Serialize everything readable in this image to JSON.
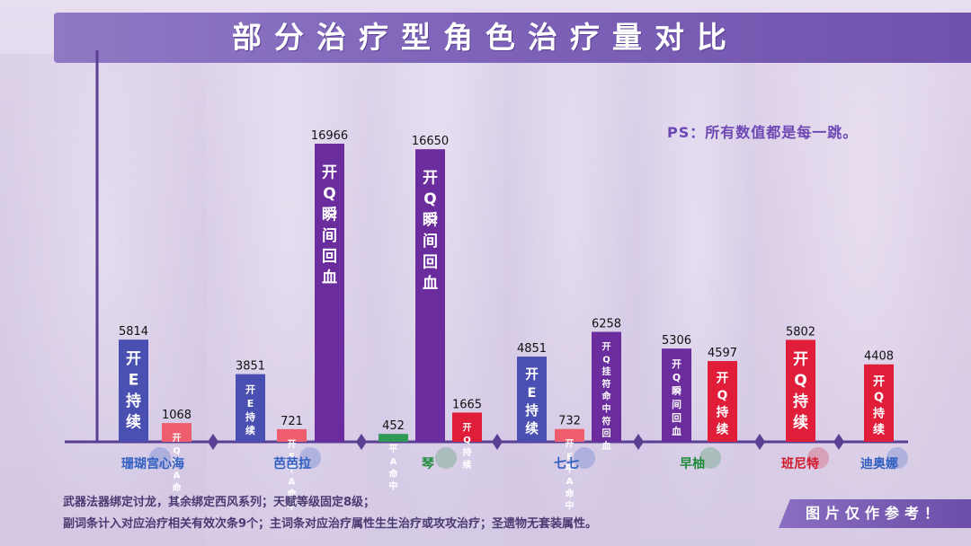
{
  "title": "部分治疗型角色治疗量对比",
  "ps_note": "PS：所有数值都是每一跳。",
  "footer": {
    "line1": "武器法器绑定讨龙，其余绑定西风系列；天赋等级固定8级；",
    "line2": "副词条计入对应治疗相关有效次条9个；主词条对应治疗属性生生治疗或攻攻治疗；圣遗物无套装属性。",
    "reference": "图片仅作参考！"
  },
  "colors": {
    "blue": "#4a4fb2",
    "salmon": "#ef5e6e",
    "purple": "#6b2c9e",
    "green": "#2e9a55",
    "red": "#e01e3a",
    "axis": "#5a3f92"
  },
  "chart_data": {
    "type": "bar",
    "ylim": [
      0,
      17500
    ],
    "categories": [
      {
        "name": "珊瑚宫心海",
        "color": "#2f5fc0"
      },
      {
        "name": "芭芭拉",
        "color": "#2f5fc0"
      },
      {
        "name": "琴",
        "color": "#1f8a3a"
      },
      {
        "name": "七七",
        "color": "#2f5fc0"
      },
      {
        "name": "早柚",
        "color": "#1f8a3a"
      },
      {
        "name": "班尼特",
        "color": "#d01a2a"
      },
      {
        "name": "迪奥娜",
        "color": "#2f5fc0"
      }
    ],
    "bars": [
      {
        "category": 0,
        "value": 5814,
        "label": "开E持续",
        "color": "#4a4fb2"
      },
      {
        "category": 0,
        "value": 1068,
        "label": "开Q平A命中",
        "color": "#ef5e6e"
      },
      {
        "category": 1,
        "value": 3851,
        "label": "开E持续",
        "color": "#4a4fb2"
      },
      {
        "category": 1,
        "value": 721,
        "label": "开E平A命中",
        "color": "#ef5e6e"
      },
      {
        "category": 1,
        "value": 16966,
        "label": "开Q瞬间回血",
        "color": "#6b2c9e"
      },
      {
        "category": 2,
        "value": 452,
        "label": "平A命中",
        "color": "#2e9a55"
      },
      {
        "category": 2,
        "value": 16650,
        "label": "开Q瞬间回血",
        "color": "#6b2c9e"
      },
      {
        "category": 2,
        "value": 1665,
        "label": "开Q持续",
        "color": "#e01e3a"
      },
      {
        "category": 3,
        "value": 4851,
        "label": "开E持续",
        "color": "#4a4fb2"
      },
      {
        "category": 3,
        "value": 732,
        "label": "开E平A命中",
        "color": "#ef5e6e"
      },
      {
        "category": 3,
        "value": 6258,
        "label": "开Q挂符命中符回血",
        "color": "#6b2c9e"
      },
      {
        "category": 4,
        "value": 5306,
        "label": "开Q瞬间回血",
        "color": "#6b2c9e"
      },
      {
        "category": 4,
        "value": 4597,
        "label": "开Q持续",
        "color": "#e01e3a"
      },
      {
        "category": 5,
        "value": 5802,
        "label": "开Q持续",
        "color": "#e01e3a"
      },
      {
        "category": 6,
        "value": 4408,
        "label": "开Q持续",
        "color": "#e01e3a"
      }
    ]
  }
}
